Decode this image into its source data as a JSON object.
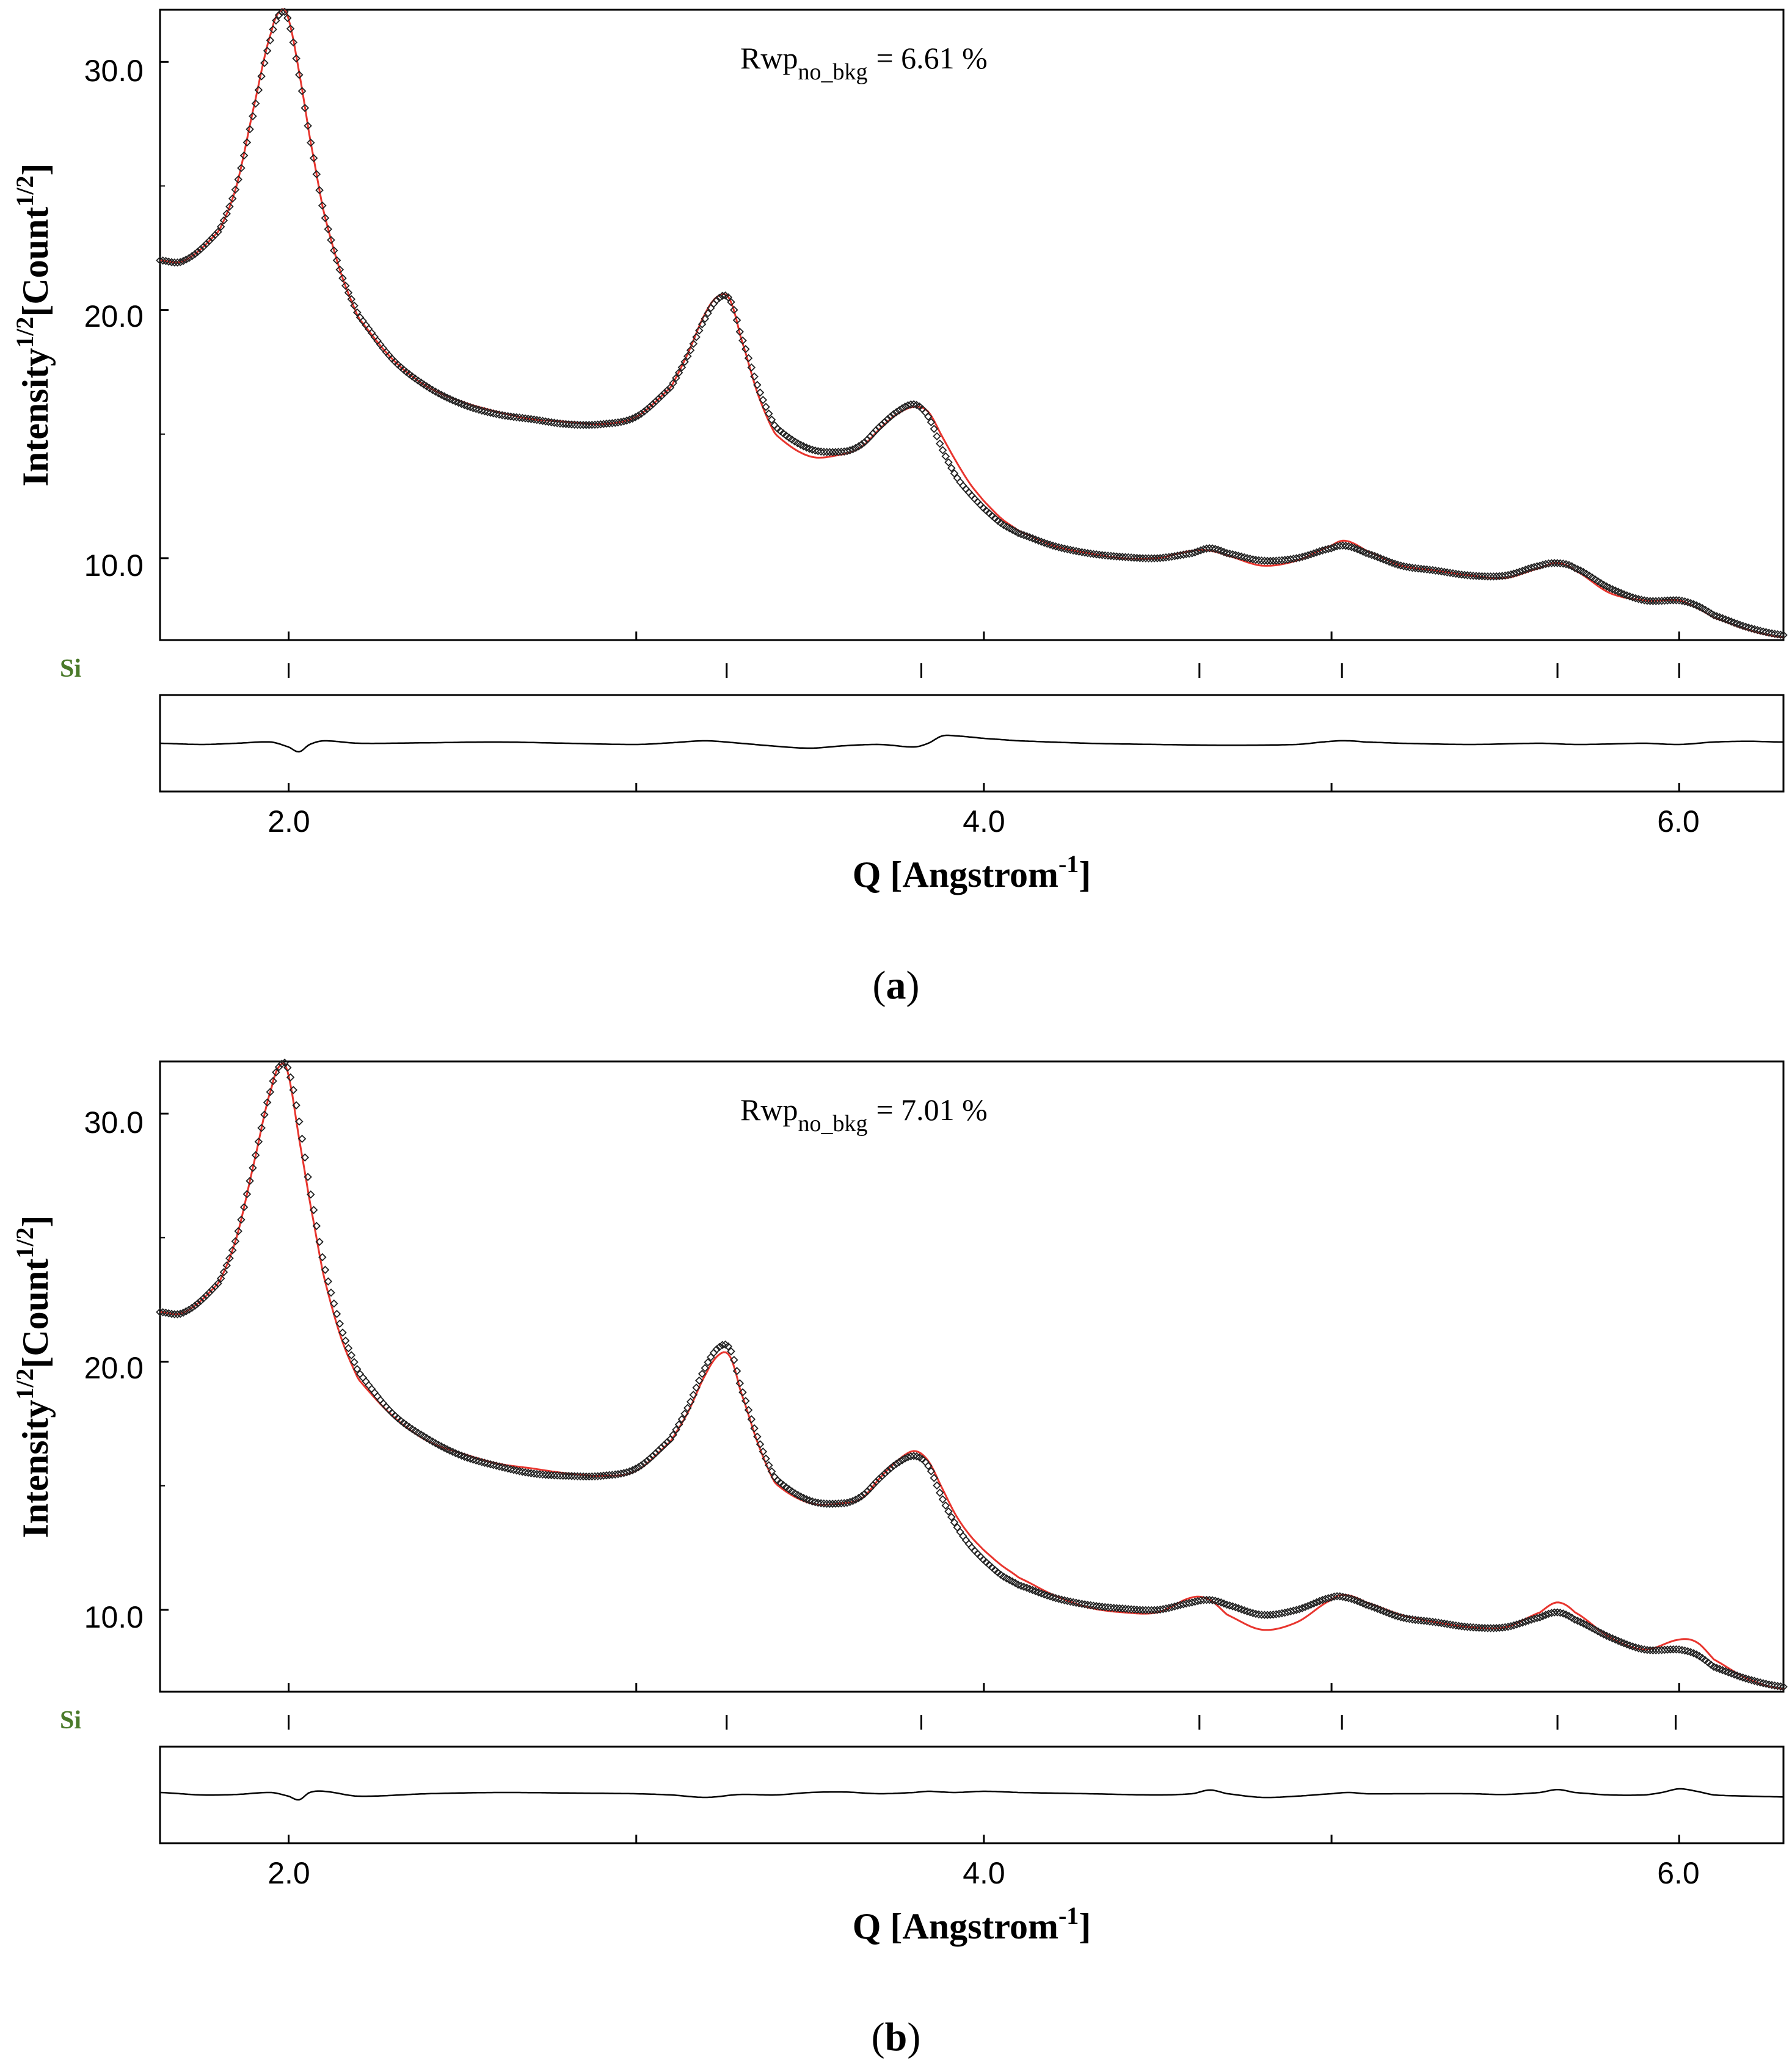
{
  "chart_data": [
    {
      "type": "scatter",
      "panel_label": "a",
      "annotation": {
        "prefix": "Rwp",
        "subscript": "no_bkg",
        "value": "= 6.61 %"
      },
      "ylabel": {
        "base": "Intensity",
        "exp1": "1/2",
        "mid": "[Count",
        "exp2": "1/2",
        "end": "]"
      },
      "xlabel": {
        "base": "Q [Angstrom",
        "exp": "-1",
        "end": "]"
      },
      "xlim": [
        1.63,
        6.3
      ],
      "ylim": [
        6.7,
        32.1
      ],
      "xticks": [
        2.0,
        3.0,
        4.0,
        5.0,
        6.0
      ],
      "xtick_labels": [
        "2.0",
        "4.0",
        "6.0"
      ],
      "ytick_labels": [
        "10.0",
        "20.0",
        "30.0"
      ],
      "yticks": [
        10.0,
        20.0,
        30.0
      ],
      "phase": {
        "name": "Si",
        "reflections": [
          2.0,
          3.26,
          3.82,
          4.62,
          5.03,
          5.65,
          6.0
        ]
      },
      "series": [
        {
          "name": "observed",
          "style": "open-diamond",
          "color": "#000000",
          "x": [
            1.63,
            1.7,
            1.8,
            1.85,
            1.9,
            1.95,
            1.98,
            2.0,
            2.03,
            2.06,
            2.1,
            2.15,
            2.2,
            2.3,
            2.4,
            2.5,
            2.6,
            2.7,
            2.8,
            2.9,
            3.0,
            3.1,
            3.15,
            3.2,
            3.24,
            3.27,
            3.3,
            3.35,
            3.4,
            3.5,
            3.6,
            3.65,
            3.7,
            3.75,
            3.8,
            3.84,
            3.88,
            3.92,
            3.96,
            4.0,
            4.05,
            4.1,
            4.2,
            4.3,
            4.4,
            4.5,
            4.6,
            4.65,
            4.7,
            4.8,
            4.9,
            5.0,
            5.04,
            5.1,
            5.2,
            5.3,
            5.4,
            5.5,
            5.6,
            5.65,
            5.7,
            5.8,
            5.9,
            6.0,
            6.05,
            6.1,
            6.2,
            6.3
          ],
          "y": [
            22.0,
            22.0,
            23.2,
            25.0,
            28.0,
            31.0,
            32.0,
            31.6,
            29.5,
            27.0,
            24.0,
            21.5,
            19.8,
            18.0,
            16.9,
            16.2,
            15.8,
            15.6,
            15.4,
            15.4,
            15.7,
            16.9,
            18.2,
            19.7,
            20.5,
            20.4,
            19.0,
            16.9,
            15.3,
            14.4,
            14.3,
            14.6,
            15.3,
            15.9,
            16.2,
            15.7,
            14.4,
            13.3,
            12.6,
            12.0,
            11.4,
            11.0,
            10.5,
            10.2,
            10.05,
            10.0,
            10.2,
            10.4,
            10.2,
            9.9,
            10.0,
            10.4,
            10.5,
            10.2,
            9.7,
            9.5,
            9.3,
            9.3,
            9.7,
            9.8,
            9.6,
            8.8,
            8.3,
            8.3,
            8.1,
            7.7,
            7.2,
            6.9
          ]
        },
        {
          "name": "calculated",
          "style": "line",
          "color": "#e8352e",
          "x": [
            1.63,
            1.7,
            1.8,
            1.85,
            1.9,
            1.95,
            1.98,
            2.0,
            2.03,
            2.06,
            2.1,
            2.15,
            2.2,
            2.3,
            2.4,
            2.5,
            2.6,
            2.7,
            2.8,
            2.9,
            3.0,
            3.1,
            3.15,
            3.2,
            3.24,
            3.27,
            3.3,
            3.35,
            3.4,
            3.5,
            3.6,
            3.65,
            3.7,
            3.75,
            3.8,
            3.84,
            3.88,
            3.92,
            3.96,
            4.0,
            4.05,
            4.1,
            4.2,
            4.3,
            4.4,
            4.5,
            4.6,
            4.65,
            4.7,
            4.8,
            4.9,
            5.0,
            5.04,
            5.1,
            5.2,
            5.3,
            5.4,
            5.5,
            5.6,
            5.65,
            5.7,
            5.8,
            5.9,
            6.0,
            6.05,
            6.1,
            6.2,
            6.3
          ],
          "y": [
            22.0,
            22.0,
            23.2,
            25.0,
            28.2,
            31.2,
            32.1,
            31.7,
            29.6,
            27.0,
            24.0,
            21.5,
            19.7,
            18.0,
            16.9,
            16.3,
            15.9,
            15.6,
            15.5,
            15.4,
            15.7,
            16.9,
            18.3,
            19.9,
            20.6,
            20.4,
            18.9,
            16.6,
            15.0,
            14.1,
            14.2,
            14.5,
            15.2,
            15.8,
            16.1,
            15.9,
            14.9,
            13.9,
            13.0,
            12.3,
            11.6,
            11.1,
            10.5,
            10.2,
            10.0,
            10.0,
            10.3,
            10.3,
            10.1,
            9.7,
            9.9,
            10.5,
            10.7,
            10.3,
            9.7,
            9.5,
            9.3,
            9.2,
            9.6,
            9.8,
            9.5,
            8.6,
            8.3,
            8.3,
            8.0,
            7.6,
            7.1,
            6.8
          ]
        },
        {
          "name": "difference",
          "style": "line",
          "color": "#000000",
          "x": [
            1.63,
            1.75,
            1.85,
            1.95,
            2.0,
            2.03,
            2.06,
            2.1,
            2.2,
            2.4,
            2.6,
            2.8,
            3.0,
            3.1,
            3.2,
            3.3,
            3.4,
            3.5,
            3.6,
            3.7,
            3.8,
            3.84,
            3.88,
            3.92,
            4.0,
            4.1,
            4.3,
            4.5,
            4.7,
            4.9,
            5.0,
            5.05,
            5.1,
            5.2,
            5.4,
            5.6,
            5.7,
            5.8,
            5.9,
            6.0,
            6.1,
            6.2,
            6.3
          ],
          "y": [
            0.0,
            -0.05,
            0.0,
            0.05,
            -0.15,
            -0.35,
            -0.05,
            0.1,
            0.0,
            0.02,
            0.05,
            0.0,
            -0.05,
            0.02,
            0.1,
            0.0,
            -0.12,
            -0.2,
            -0.1,
            -0.05,
            -0.15,
            0.0,
            0.3,
            0.3,
            0.2,
            0.1,
            0.0,
            -0.05,
            -0.08,
            -0.05,
            0.08,
            0.1,
            0.05,
            0.0,
            -0.05,
            0.0,
            -0.05,
            -0.03,
            0.0,
            -0.05,
            0.05,
            0.08,
            0.05
          ]
        }
      ]
    },
    {
      "type": "scatter",
      "panel_label": "b",
      "annotation": {
        "prefix": "Rwp",
        "subscript": "no_bkg",
        "value": "= 7.01 %"
      },
      "ylabel": {
        "base": "Intensity",
        "exp1": "1/2",
        "mid": "[Count",
        "exp2": "1/2",
        "end": "]"
      },
      "xlabel": {
        "base": "Q [Angstrom",
        "exp": "-1",
        "end": "]"
      },
      "xlim": [
        1.63,
        6.3
      ],
      "ylim": [
        6.7,
        32.1
      ],
      "xticks": [
        2.0,
        3.0,
        4.0,
        5.0,
        6.0
      ],
      "xtick_labels": [
        "2.0",
        "4.0",
        "6.0"
      ],
      "ytick_labels": [
        "10.0",
        "20.0",
        "30.0"
      ],
      "yticks": [
        10.0,
        20.0,
        30.0
      ],
      "phase": {
        "name": "Si",
        "reflections": [
          2.0,
          3.26,
          3.82,
          4.62,
          5.03,
          5.65,
          5.99
        ]
      },
      "series": [
        {
          "name": "observed",
          "style": "open-diamond",
          "color": "#000000",
          "x": [
            1.63,
            1.7,
            1.8,
            1.85,
            1.9,
            1.95,
            1.98,
            2.0,
            2.03,
            2.06,
            2.1,
            2.15,
            2.2,
            2.3,
            2.4,
            2.5,
            2.6,
            2.7,
            2.8,
            2.9,
            3.0,
            3.1,
            3.15,
            3.2,
            3.24,
            3.27,
            3.3,
            3.35,
            3.4,
            3.5,
            3.6,
            3.65,
            3.7,
            3.75,
            3.8,
            3.84,
            3.88,
            3.92,
            3.96,
            4.0,
            4.05,
            4.1,
            4.2,
            4.3,
            4.4,
            4.5,
            4.6,
            4.65,
            4.7,
            4.8,
            4.9,
            5.0,
            5.04,
            5.1,
            5.2,
            5.3,
            5.4,
            5.5,
            5.6,
            5.65,
            5.7,
            5.8,
            5.9,
            6.0,
            6.05,
            6.1,
            6.2,
            6.3
          ],
          "y": [
            22.0,
            22.0,
            23.2,
            25.0,
            28.0,
            31.0,
            32.0,
            31.7,
            29.7,
            27.0,
            24.0,
            21.4,
            19.6,
            17.9,
            16.9,
            16.2,
            15.8,
            15.5,
            15.4,
            15.4,
            15.7,
            16.9,
            18.2,
            19.8,
            20.6,
            20.5,
            19.0,
            16.9,
            15.3,
            14.4,
            14.3,
            14.6,
            15.3,
            15.9,
            16.2,
            15.8,
            14.5,
            13.4,
            12.6,
            12.0,
            11.4,
            11.0,
            10.5,
            10.2,
            10.05,
            10.0,
            10.3,
            10.4,
            10.2,
            9.8,
            10.0,
            10.5,
            10.5,
            10.2,
            9.7,
            9.5,
            9.3,
            9.3,
            9.7,
            9.9,
            9.6,
            8.9,
            8.4,
            8.4,
            8.2,
            7.7,
            7.2,
            6.9
          ]
        },
        {
          "name": "calculated",
          "style": "line",
          "color": "#e8352e",
          "x": [
            1.63,
            1.7,
            1.8,
            1.85,
            1.9,
            1.95,
            1.98,
            2.0,
            2.03,
            2.06,
            2.1,
            2.15,
            2.2,
            2.3,
            2.4,
            2.5,
            2.6,
            2.7,
            2.8,
            2.9,
            3.0,
            3.1,
            3.15,
            3.2,
            3.24,
            3.27,
            3.3,
            3.35,
            3.4,
            3.5,
            3.6,
            3.65,
            3.7,
            3.75,
            3.8,
            3.84,
            3.88,
            3.92,
            3.96,
            4.0,
            4.05,
            4.1,
            4.2,
            4.3,
            4.4,
            4.5,
            4.6,
            4.65,
            4.7,
            4.8,
            4.9,
            5.0,
            5.04,
            5.1,
            5.2,
            5.3,
            5.4,
            5.5,
            5.6,
            5.65,
            5.7,
            5.8,
            5.9,
            6.0,
            6.05,
            6.1,
            6.2,
            6.3
          ],
          "y": [
            22.0,
            22.0,
            23.2,
            25.0,
            28.0,
            31.0,
            32.0,
            31.5,
            29.0,
            26.5,
            23.5,
            21.0,
            19.3,
            17.8,
            16.8,
            16.3,
            15.9,
            15.7,
            15.5,
            15.4,
            15.6,
            16.8,
            18.0,
            19.5,
            20.3,
            20.2,
            18.8,
            16.7,
            15.1,
            14.3,
            14.3,
            14.5,
            15.3,
            16.0,
            16.4,
            16.0,
            14.9,
            13.8,
            13.0,
            12.4,
            11.8,
            11.3,
            10.6,
            10.1,
            9.9,
            9.9,
            10.5,
            10.4,
            9.8,
            9.2,
            9.5,
            10.4,
            10.6,
            10.3,
            9.8,
            9.5,
            9.3,
            9.3,
            9.9,
            10.3,
            9.9,
            8.9,
            8.4,
            8.8,
            8.7,
            8.0,
            7.2,
            6.8
          ]
        },
        {
          "name": "difference",
          "style": "line",
          "color": "#000000",
          "x": [
            1.63,
            1.75,
            1.85,
            1.95,
            2.0,
            2.03,
            2.06,
            2.1,
            2.2,
            2.4,
            2.6,
            2.8,
            3.0,
            3.1,
            3.2,
            3.3,
            3.4,
            3.5,
            3.6,
            3.7,
            3.8,
            3.84,
            3.88,
            3.92,
            4.0,
            4.1,
            4.3,
            4.5,
            4.6,
            4.65,
            4.7,
            4.8,
            4.9,
            5.0,
            5.05,
            5.1,
            5.2,
            5.4,
            5.5,
            5.6,
            5.65,
            5.7,
            5.8,
            5.9,
            5.95,
            6.0,
            6.05,
            6.1,
            6.2,
            6.3
          ],
          "y": [
            0.1,
            0.0,
            0.02,
            0.1,
            -0.05,
            -0.2,
            0.1,
            0.15,
            -0.05,
            0.05,
            0.1,
            0.08,
            0.05,
            0.0,
            -0.1,
            0.02,
            0.0,
            0.1,
            0.12,
            0.05,
            0.1,
            0.15,
            0.12,
            0.1,
            0.15,
            0.1,
            0.05,
            0.0,
            0.05,
            0.2,
            0.05,
            -0.1,
            -0.05,
            0.05,
            0.1,
            0.05,
            0.05,
            0.05,
            0.02,
            0.1,
            0.22,
            0.1,
            0.0,
            0.0,
            0.1,
            0.25,
            0.15,
            0.0,
            -0.05,
            -0.08
          ]
        }
      ]
    }
  ]
}
